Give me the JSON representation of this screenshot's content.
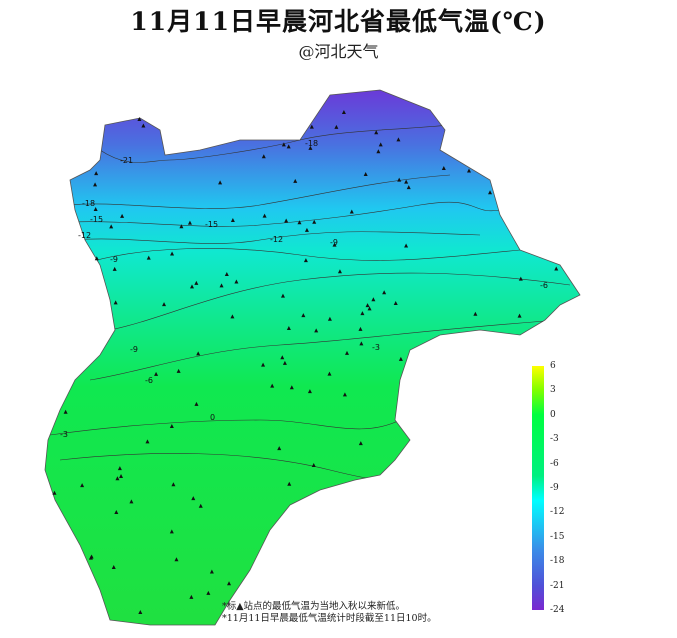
{
  "title": "11月11日早晨河北省最低气温(℃)",
  "subtitle": "@河北天气",
  "legend": {
    "ticks": [
      "6",
      "3",
      "0",
      "-3",
      "-6",
      "-9",
      "-12",
      "-15",
      "-18",
      "-21",
      "-24"
    ],
    "colors": {
      "max": "#ffff00",
      "zero": "#00ff40",
      "cold": "#00ffff",
      "min": "#7a28d0"
    }
  },
  "contour_labels": [
    "-21",
    "-18",
    "-18",
    "-15",
    "-15",
    "-12",
    "-12",
    "-9",
    "-9",
    "-9",
    "-6",
    "-6",
    "-3",
    "-3",
    "0"
  ],
  "notes": [
    "*标▲站点的最低气温为当地入秋以来新低。",
    "*11月11日早晨最低气温统计时段截至11日10时。"
  ]
}
